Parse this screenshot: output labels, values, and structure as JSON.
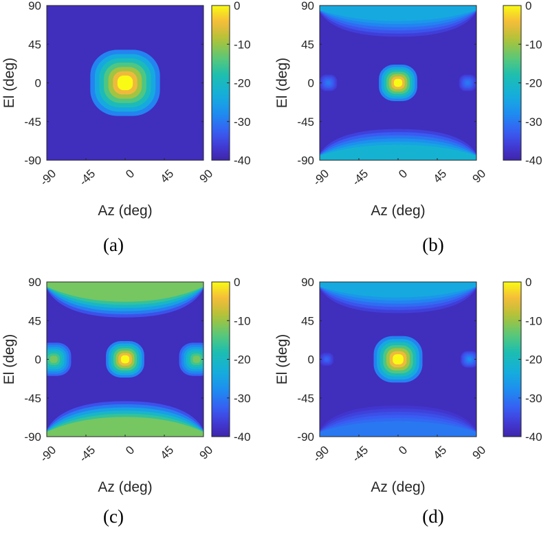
{
  "chart_data": [
    {
      "type": "heatmap",
      "caption": "(a)",
      "xlabel": "Az (deg)",
      "ylabel": "El (deg)",
      "xticks": [
        "-90",
        "-45",
        "0",
        "45",
        "90"
      ],
      "yticks": [
        "90",
        "45",
        "0",
        "-45",
        "-90"
      ],
      "xlim": [
        -90,
        90
      ],
      "ylim": [
        -90,
        90
      ],
      "colorbar": {
        "ticks": [
          "0",
          "-10",
          "-20",
          "-30",
          "-40"
        ],
        "range": [
          -40,
          0
        ]
      },
      "features": [
        {
          "kind": "mainlobe",
          "az": 0,
          "el": 0,
          "peak_db": 0,
          "width_deg": 40
        }
      ]
    },
    {
      "type": "heatmap",
      "caption": "(b)",
      "xlabel": "Az (deg)",
      "ylabel": "El (deg)",
      "xticks": [
        "-90",
        "-45",
        "0",
        "45",
        "90"
      ],
      "yticks": [
        "90",
        "45",
        "0",
        "-45",
        "-90"
      ],
      "xlim": [
        -90,
        90
      ],
      "ylim": [
        -90,
        90
      ],
      "colorbar": {
        "ticks": [
          "0",
          "-10",
          "-20",
          "-30",
          "-40"
        ],
        "range": [
          -40,
          0
        ]
      },
      "features": [
        {
          "kind": "mainlobe",
          "az": 0,
          "el": 0,
          "peak_db": 0,
          "width_deg": 22
        },
        {
          "kind": "sidelobe",
          "az": -80,
          "el": 0,
          "peak_db": -30,
          "width_deg": 10
        },
        {
          "kind": "sidelobe",
          "az": 80,
          "el": 0,
          "peak_db": -30,
          "width_deg": 10
        },
        {
          "kind": "band",
          "el": 80,
          "peak_db": -24
        },
        {
          "kind": "band",
          "el": -80,
          "peak_db": -22
        }
      ]
    },
    {
      "type": "heatmap",
      "caption": "(c)",
      "xlabel": "Az (deg)",
      "ylabel": "El (deg)",
      "xticks": [
        "-90",
        "-45",
        "0",
        "45",
        "90"
      ],
      "yticks": [
        "90",
        "45",
        "0",
        "-45",
        "-90"
      ],
      "xlim": [
        -90,
        90
      ],
      "ylim": [
        -90,
        90
      ],
      "colorbar": {
        "ticks": [
          "0",
          "-10",
          "-20",
          "-30",
          "-40"
        ],
        "range": [
          -40,
          0
        ]
      },
      "features": [
        {
          "kind": "mainlobe",
          "az": 0,
          "el": 0,
          "peak_db": 0,
          "width_deg": 22
        },
        {
          "kind": "sidelobe",
          "az": -82,
          "el": 0,
          "peak_db": -12,
          "width_deg": 20
        },
        {
          "kind": "sidelobe",
          "az": 82,
          "el": 0,
          "peak_db": -12,
          "width_deg": 20
        },
        {
          "kind": "band",
          "el": 75,
          "peak_db": -12
        },
        {
          "kind": "band",
          "el": -75,
          "peak_db": -12
        }
      ]
    },
    {
      "type": "heatmap",
      "caption": "(d)",
      "xlabel": "Az (deg)",
      "ylabel": "El (deg)",
      "xticks": [
        "-90",
        "-45",
        "0",
        "45",
        "90"
      ],
      "yticks": [
        "90",
        "45",
        "0",
        "-45",
        "-90"
      ],
      "xlim": [
        -90,
        90
      ],
      "ylim": [
        -90,
        90
      ],
      "colorbar": {
        "ticks": [
          "0",
          "-10",
          "-20",
          "-30",
          "-40"
        ],
        "range": [
          -40,
          0
        ]
      },
      "features": [
        {
          "kind": "mainlobe",
          "az": 0,
          "el": 0,
          "peak_db": 0,
          "width_deg": 28
        },
        {
          "kind": "sidelobe",
          "az": -82,
          "el": 0,
          "peak_db": -32,
          "width_deg": 8
        },
        {
          "kind": "sidelobe",
          "az": 82,
          "el": 0,
          "peak_db": -28,
          "width_deg": 10
        },
        {
          "kind": "band",
          "el": 80,
          "peak_db": -24
        },
        {
          "kind": "band",
          "el": -80,
          "peak_db": -30
        }
      ]
    }
  ]
}
